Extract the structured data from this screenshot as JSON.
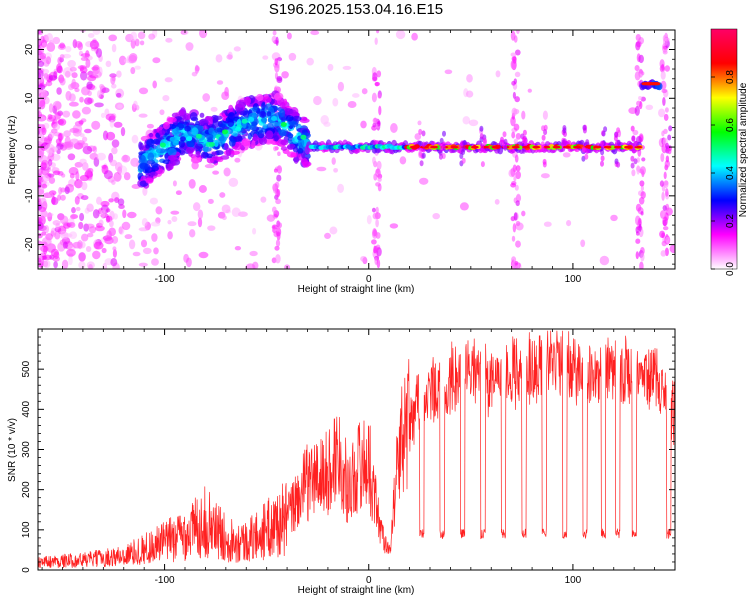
{
  "figure": {
    "title": "S196.2025.153.04.16.E15"
  },
  "chart_data": [
    {
      "type": "heatmap",
      "title": "S196.2025.153.04.16.E15",
      "xlabel": "Height of straight line (km)",
      "ylabel": "Frequency (Hz)",
      "xlim": [
        -162,
        150
      ],
      "ylim": [
        -25,
        24
      ],
      "xticks": [
        -100,
        0,
        100
      ],
      "yticks": [
        -20,
        -10,
        0,
        10,
        20
      ],
      "colorbar": {
        "label": "Normalized spectral amplitude",
        "range": [
          0,
          1
        ],
        "ticks": [
          0.0,
          0.2,
          0.4,
          0.6,
          0.8
        ],
        "colormap": [
          "#ffffff",
          "#ff00ff",
          "#0000ff",
          "#00ffff",
          "#00ff00",
          "#ffff00",
          "#ff0000",
          "#ff0066"
        ]
      },
      "features": {
        "carrier_frequency_hz": 0,
        "rising_trace": [
          {
            "x": -112,
            "y": -4
          },
          {
            "x": -100,
            "y": 0
          },
          {
            "x": -90,
            "y": 3
          },
          {
            "x": -78,
            "y": 1
          },
          {
            "x": -60,
            "y": 5
          },
          {
            "x": -45,
            "y": 6
          },
          {
            "x": -38,
            "y": 3
          },
          {
            "x": -30,
            "y": 1
          }
        ],
        "vertical_streaks_x": [
          -45,
          4,
          72,
          133,
          145
        ],
        "high_segment": {
          "x_start": 134,
          "x_end": 143,
          "y": 13
        }
      }
    },
    {
      "type": "line",
      "xlabel": "Height of straight line (km)",
      "ylabel": "SNR (10 * v/v)",
      "xlim": [
        -162,
        150
      ],
      "ylim": [
        0,
        600
      ],
      "xticks": [
        -100,
        0,
        100
      ],
      "yticks": [
        0,
        100,
        200,
        300,
        400,
        500
      ],
      "grid": false,
      "series": [
        {
          "color": "#ff2020",
          "x": [
            -160,
            -140,
            -120,
            -100,
            -90,
            -80,
            -70,
            -60,
            -50,
            -40,
            -30,
            -20,
            -15,
            -10,
            -5,
            0,
            5,
            10,
            15,
            20,
            25,
            30,
            40,
            50,
            60,
            70,
            80,
            90,
            100,
            110,
            120,
            130,
            140,
            150
          ],
          "values": [
            20,
            25,
            35,
            70,
            90,
            120,
            80,
            70,
            100,
            130,
            220,
            240,
            300,
            200,
            260,
            270,
            120,
            40,
            300,
            390,
            480,
            470,
            520,
            540,
            510,
            530,
            540,
            560,
            530,
            520,
            540,
            520,
            520,
            420
          ],
          "dropouts_x": [
            26,
            36,
            46,
            56,
            66,
            76,
            86,
            96,
            106,
            115,
            122,
            130,
            147
          ],
          "dropout_level": 90
        }
      ]
    }
  ]
}
